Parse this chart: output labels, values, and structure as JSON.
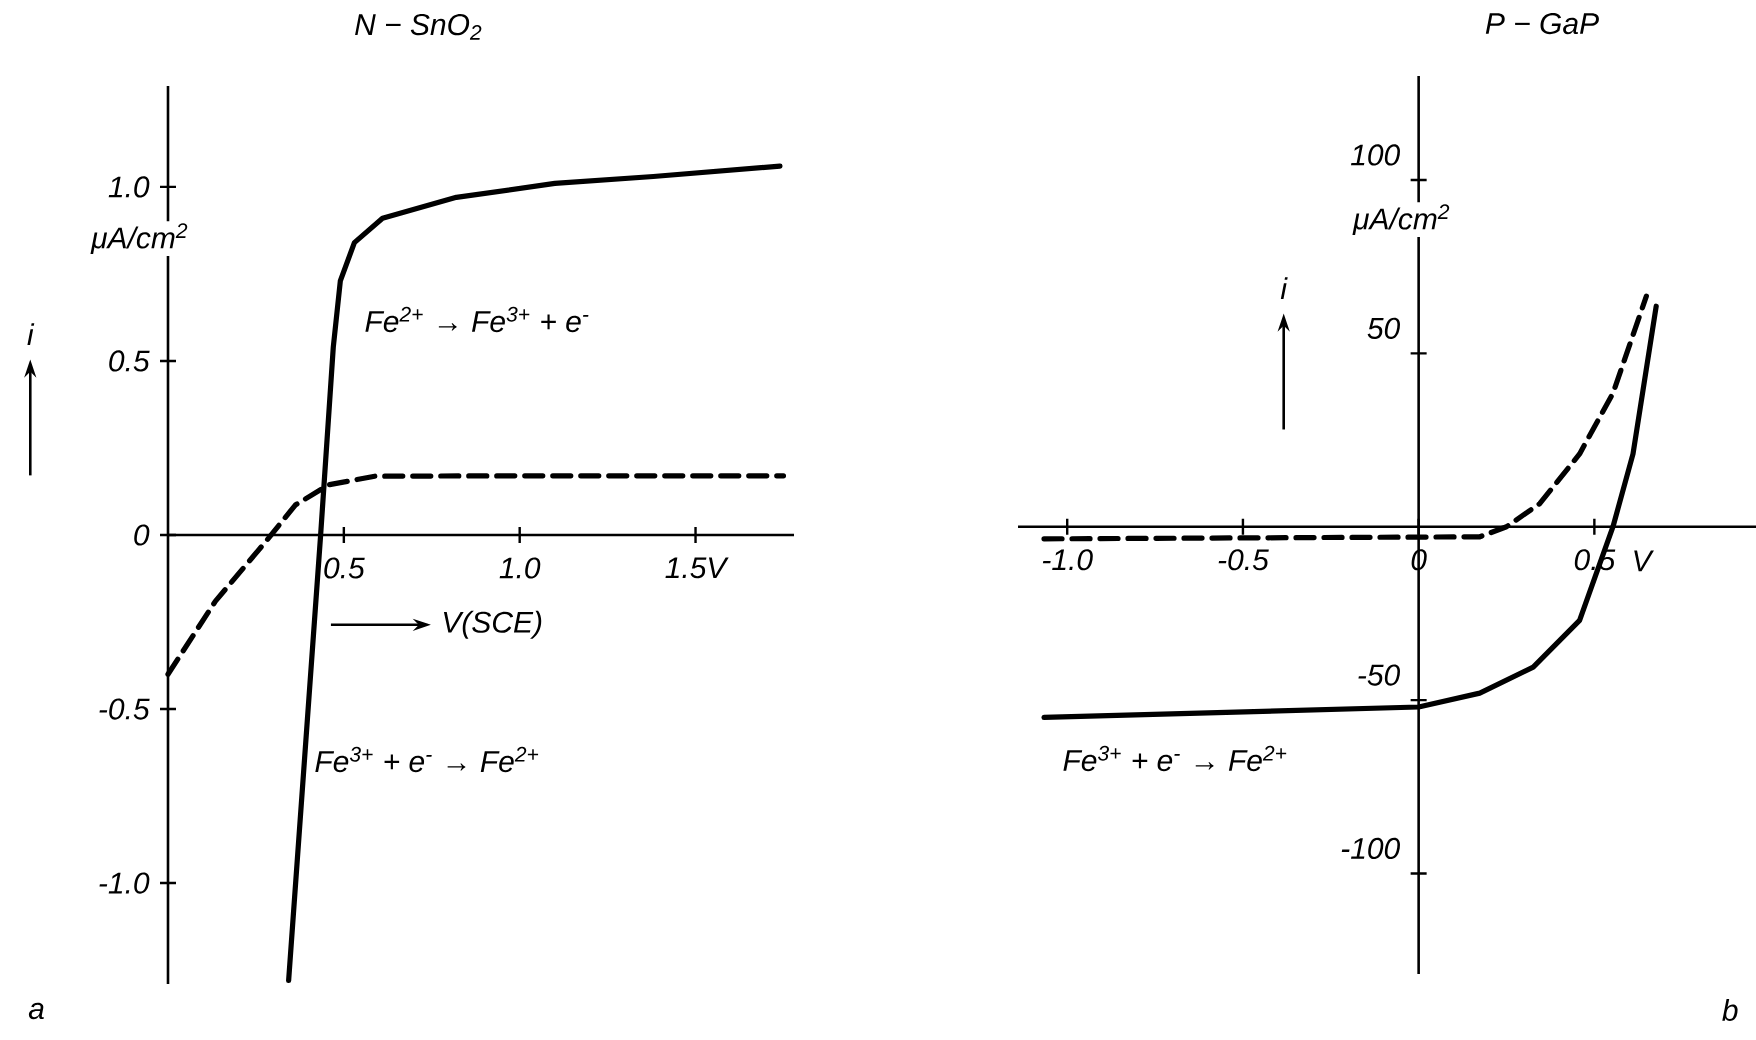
{
  "chart_data": [
    {
      "type": "line",
      "title": "N − SnO$_{2}$",
      "xlabel": "V(SCE)",
      "ylabel": "i",
      "marker": "none",
      "xlim": [
        0,
        1.78
      ],
      "ylim": [
        -1.29,
        1.29
      ],
      "xticks": [
        0.5,
        {
          "value": 1,
          "label": "1.0"
        },
        {
          "value": 1.5,
          "label": "1.5V"
        }
      ],
      "yticks": [
        {
          "value": -1,
          "label": "-1.0"
        },
        -0.5,
        0,
        0.5,
        {
          "value": 1,
          "label": "1.0"
        }
      ],
      "series": [
        {
          "color": "#000000",
          "line_style": "solid",
          "x": [
            0.343,
            0.434,
            0.47,
            0.49,
            0.53,
            0.61,
            0.82,
            1.1,
            1.38,
            1.74
          ],
          "values": [
            -1.28,
            0,
            0.54,
            0.73,
            0.84,
            0.91,
            0.97,
            1.01,
            1.03,
            1.06
          ]
        },
        {
          "color": "#000000",
          "line_style": "dashed",
          "x": [
            0,
            0.135,
            0.277,
            0.362,
            0.456,
            0.589,
            0.99,
            1.75
          ],
          "values": [
            -0.4,
            -0.19,
            -0.02,
            0.086,
            0.144,
            0.169,
            0.17,
            0.17
          ]
        }
      ],
      "annotations": [
        "μA/cm$^{2}$",
        "Fe$^{2+}$ → Fe$^{3+}$ + e$^{-}$",
        "Fe$^{3+}$ + e$^{-}$ → Fe$^{2+}$",
        "a"
      ]
    },
    {
      "type": "line",
      "title": "P − GaP",
      "ylabel": "i",
      "marker": "none",
      "xlim": [
        -1.14,
        0.96
      ],
      "ylim": [
        -129,
        130
      ],
      "xticks": [
        {
          "value": -1,
          "label": "-1.0"
        },
        -0.5,
        0,
        0.5
      ],
      "yticks": [
        -100,
        -50,
        50,
        100
      ],
      "series": [
        {
          "color": "#000000",
          "line_style": "dashed",
          "x": [
            -1.066,
            0.174,
            0.25,
            0.345,
            0.458,
            0.553,
            0.648
          ],
          "values": [
            -3.5,
            -2.9,
            0,
            6.7,
            21,
            38.5,
            66.5
          ]
        },
        {
          "color": "#000000",
          "line_style": "solid",
          "x": [
            -1.066,
            0,
            0.174,
            0.326,
            0.458,
            0.553,
            0.61,
            0.676
          ],
          "values": [
            -55,
            -52,
            -48,
            -40.5,
            -27,
            0,
            21,
            63.6
          ]
        }
      ],
      "annotations": [
        "μA/cm$^{2}$",
        "Fe$^{3+}$ + e$^{-}$ → Fe$^{2+}$",
        "V",
        "b"
      ]
    }
  ]
}
